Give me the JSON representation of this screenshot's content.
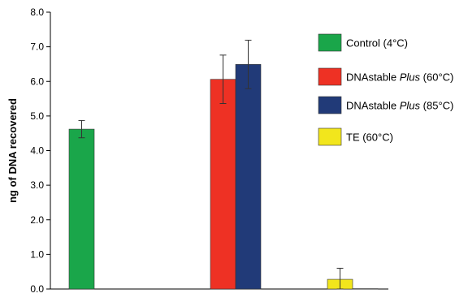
{
  "chart_data": {
    "type": "bar",
    "ylabel": "ng of DNA recovered",
    "ylim": [
      0,
      8
    ],
    "yticks": [
      "0.0",
      "1.0",
      "2.0",
      "3.0",
      "4.0",
      "5.0",
      "6.0",
      "7.0",
      "8.0"
    ],
    "grid": false,
    "legend_position": "right",
    "groups": [
      {
        "bars": [
          {
            "series": 0,
            "value": 4.62,
            "error": 0.25
          }
        ]
      },
      {
        "bars": [
          {
            "series": 1,
            "value": 6.06,
            "error": 0.7
          },
          {
            "series": 2,
            "value": 6.49,
            "error": 0.7
          }
        ]
      },
      {
        "bars": [
          {
            "series": 3,
            "value": 0.28,
            "error": 0.32
          },
          {
            "series": 2,
            "value": 0.01,
            "error": 0
          }
        ]
      }
    ],
    "series": [
      {
        "name_parts": [
          {
            "text": "Control (4°C)",
            "italic": false
          }
        ],
        "color": "#1aa64a"
      },
      {
        "name_parts": [
          {
            "text": "DNAstable ",
            "italic": false
          },
          {
            "text": "Plus",
            "italic": true
          },
          {
            "text": " (60°C)",
            "italic": false
          }
        ],
        "color": "#ee3124"
      },
      {
        "name_parts": [
          {
            "text": "DNAstable ",
            "italic": false
          },
          {
            "text": "Plus",
            "italic": true
          },
          {
            "text": " (85°C)",
            "italic": false
          }
        ],
        "color": "#213a78"
      },
      {
        "name_parts": [
          {
            "text": "TE (60°C)",
            "italic": false
          }
        ],
        "color": "#f2e61c"
      }
    ]
  }
}
